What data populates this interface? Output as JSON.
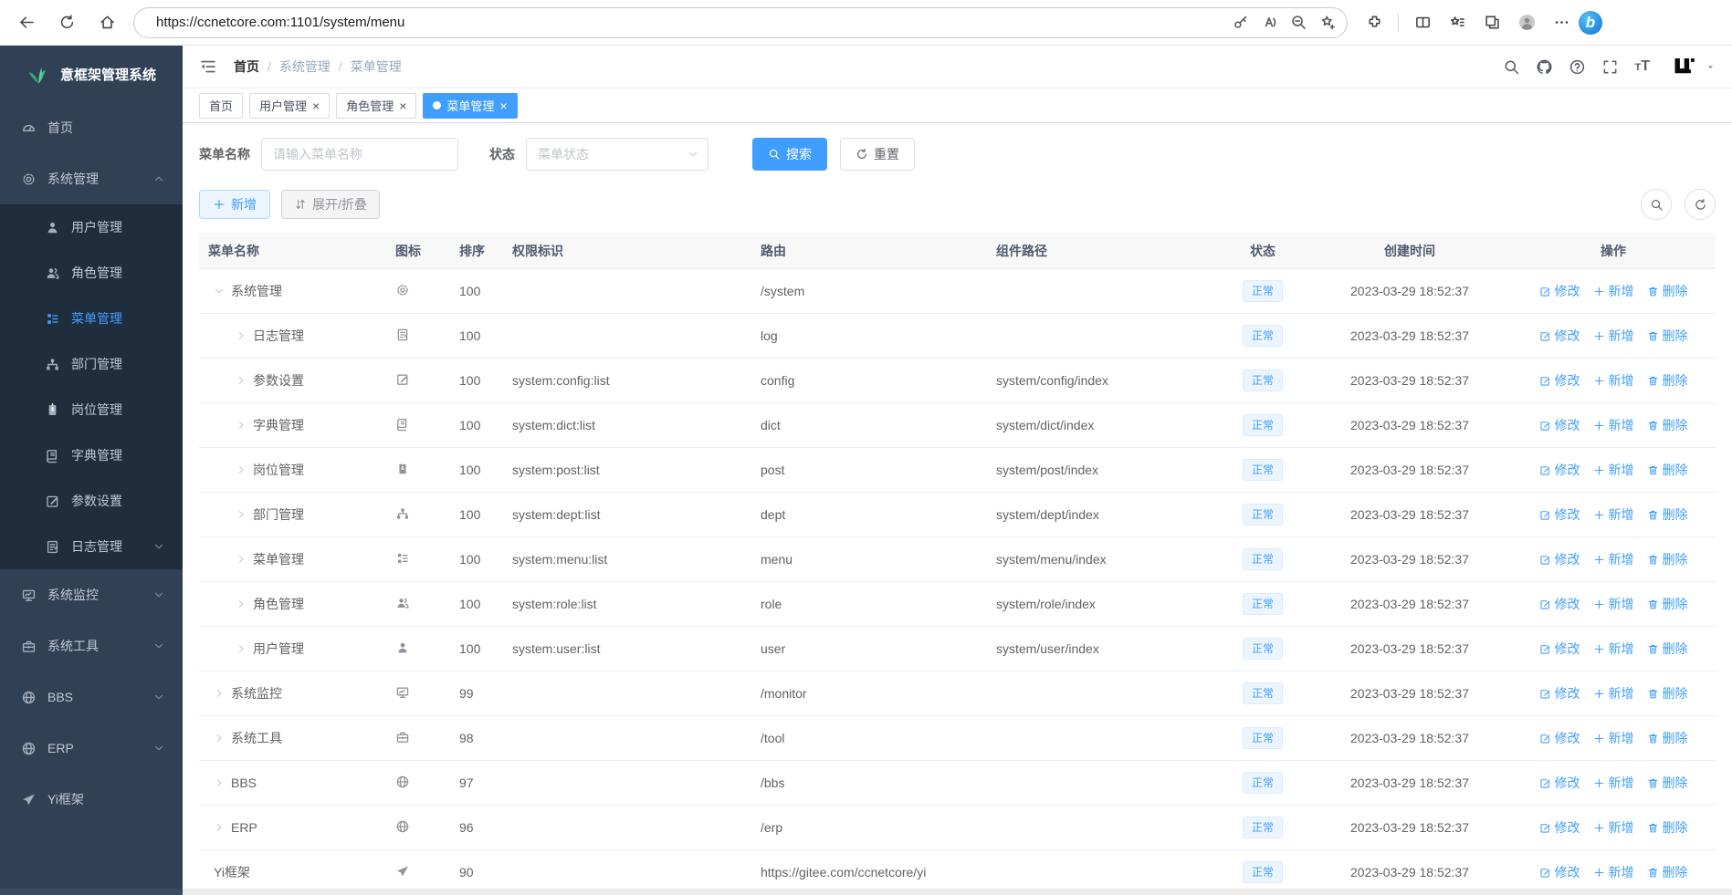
{
  "colors": {
    "accent": "#409eff",
    "sidebar_bg": "#304156",
    "submenu_bg": "#1f2d3d",
    "sidebar_text": "#c0c8d4",
    "status_bg": "#ecf5ff",
    "status_border": "#d9ecff",
    "table_header_bg": "#f8f8f9",
    "logo_green": "#42b983"
  },
  "browser": {
    "url": "https://ccnetcore.com:1101/system/menu",
    "left_icons": [
      "back",
      "refresh",
      "home"
    ],
    "pill_lock_icon": "lock",
    "pill_trailing_icons": [
      "key",
      "read-aloud",
      "zoom-out",
      "favorite-add"
    ],
    "right_icons": [
      "extensions",
      "split-screen",
      "favorites",
      "collections",
      "profile",
      "more"
    ],
    "copilot_icon": "copilot"
  },
  "sidebar": {
    "title": "意框架管理系统",
    "logo_icon": "leaf",
    "items": [
      {
        "label": "首页",
        "icon": "dashboard"
      },
      {
        "label": "系统管理",
        "icon": "gear",
        "expanded": true,
        "children": [
          {
            "label": "用户管理",
            "icon": "user"
          },
          {
            "label": "角色管理",
            "icon": "users"
          },
          {
            "label": "菜单管理",
            "icon": "menu-tree",
            "active": true
          },
          {
            "label": "部门管理",
            "icon": "org-tree"
          },
          {
            "label": "岗位管理",
            "icon": "post-badge"
          },
          {
            "label": "字典管理",
            "icon": "dict-book"
          },
          {
            "label": "参数设置",
            "icon": "edit-square"
          },
          {
            "label": "日志管理",
            "icon": "log-doc",
            "expandable": true
          }
        ]
      },
      {
        "label": "系统监控",
        "icon": "monitor",
        "expandable": true
      },
      {
        "label": "系统工具",
        "icon": "toolbox",
        "expandable": true
      },
      {
        "label": "BBS",
        "icon": "globe",
        "expandable": true
      },
      {
        "label": "ERP",
        "icon": "globe",
        "expandable": true
      },
      {
        "label": "Yi框架",
        "icon": "paper-plane"
      }
    ]
  },
  "header": {
    "breadcrumb": [
      "首页",
      "系统管理",
      "菜单管理"
    ],
    "breadcrumb_separator": "/",
    "action_icons": [
      "search",
      "github",
      "help",
      "fullscreen",
      "font-size"
    ],
    "avatar_icon": "yi-logo"
  },
  "tabs": [
    {
      "label": "首页",
      "closable": false,
      "active": false
    },
    {
      "label": "用户管理",
      "closable": true,
      "active": false
    },
    {
      "label": "角色管理",
      "closable": true,
      "active": false
    },
    {
      "label": "菜单管理",
      "closable": true,
      "active": true
    }
  ],
  "filters": {
    "name_label": "菜单名称",
    "name_placeholder": "请输入菜单名称",
    "status_label": "状态",
    "status_placeholder": "菜单状态",
    "search_label": "搜索",
    "reset_label": "重置"
  },
  "toolbar": {
    "add_label": "新增",
    "toggle_label": "展开/折叠",
    "right_icons": [
      "search",
      "refresh"
    ]
  },
  "table": {
    "columns": [
      "菜单名称",
      "图标",
      "排序",
      "权限标识",
      "路由",
      "组件路径",
      "状态",
      "创建时间",
      "操作"
    ],
    "action_labels": {
      "edit": "修改",
      "add": "新增",
      "remove": "删除"
    },
    "rows": [
      {
        "name": "系统管理",
        "level": 0,
        "state": "expanded",
        "icon": "gear",
        "sort": "100",
        "perm": "",
        "route": "/system",
        "component": "",
        "status": "正常",
        "created": "2023-03-29 18:52:37"
      },
      {
        "name": "日志管理",
        "level": 1,
        "state": "collapsed",
        "icon": "log-doc",
        "sort": "100",
        "perm": "",
        "route": "log",
        "component": "",
        "status": "正常",
        "created": "2023-03-29 18:52:37"
      },
      {
        "name": "参数设置",
        "level": 1,
        "state": "collapsed",
        "icon": "edit-square",
        "sort": "100",
        "perm": "system:config:list",
        "route": "config",
        "component": "system/config/index",
        "status": "正常",
        "created": "2023-03-29 18:52:37"
      },
      {
        "name": "字典管理",
        "level": 1,
        "state": "collapsed",
        "icon": "dict-book",
        "sort": "100",
        "perm": "system:dict:list",
        "route": "dict",
        "component": "system/dict/index",
        "status": "正常",
        "created": "2023-03-29 18:52:37"
      },
      {
        "name": "岗位管理",
        "level": 1,
        "state": "collapsed",
        "icon": "post-badge",
        "sort": "100",
        "perm": "system:post:list",
        "route": "post",
        "component": "system/post/index",
        "status": "正常",
        "created": "2023-03-29 18:52:37"
      },
      {
        "name": "部门管理",
        "level": 1,
        "state": "collapsed",
        "icon": "org-tree",
        "sort": "100",
        "perm": "system:dept:list",
        "route": "dept",
        "component": "system/dept/index",
        "status": "正常",
        "created": "2023-03-29 18:52:37"
      },
      {
        "name": "菜单管理",
        "level": 1,
        "state": "collapsed",
        "icon": "menu-tree",
        "sort": "100",
        "perm": "system:menu:list",
        "route": "menu",
        "component": "system/menu/index",
        "status": "正常",
        "created": "2023-03-29 18:52:37"
      },
      {
        "name": "角色管理",
        "level": 1,
        "state": "collapsed",
        "icon": "users",
        "sort": "100",
        "perm": "system:role:list",
        "route": "role",
        "component": "system/role/index",
        "status": "正常",
        "created": "2023-03-29 18:52:37"
      },
      {
        "name": "用户管理",
        "level": 1,
        "state": "collapsed",
        "icon": "user",
        "sort": "100",
        "perm": "system:user:list",
        "route": "user",
        "component": "system/user/index",
        "status": "正常",
        "created": "2023-03-29 18:52:37"
      },
      {
        "name": "系统监控",
        "level": 0,
        "state": "collapsed",
        "icon": "monitor",
        "sort": "99",
        "perm": "",
        "route": "/monitor",
        "component": "",
        "status": "正常",
        "created": "2023-03-29 18:52:37"
      },
      {
        "name": "系统工具",
        "level": 0,
        "state": "collapsed",
        "icon": "toolbox",
        "sort": "98",
        "perm": "",
        "route": "/tool",
        "component": "",
        "status": "正常",
        "created": "2023-03-29 18:52:37"
      },
      {
        "name": "BBS",
        "level": 0,
        "state": "collapsed",
        "icon": "globe",
        "sort": "97",
        "perm": "",
        "route": "/bbs",
        "component": "",
        "status": "正常",
        "created": "2023-03-29 18:52:37"
      },
      {
        "name": "ERP",
        "level": 0,
        "state": "collapsed",
        "icon": "globe",
        "sort": "96",
        "perm": "",
        "route": "/erp",
        "component": "",
        "status": "正常",
        "created": "2023-03-29 18:52:37"
      },
      {
        "name": "Yi框架",
        "level": 0,
        "state": "leaf",
        "icon": "paper-plane",
        "sort": "90",
        "perm": "",
        "route": "https://gitee.com/ccnetcore/yi",
        "component": "",
        "status": "正常",
        "created": "2023-03-29 18:52:37"
      }
    ]
  }
}
